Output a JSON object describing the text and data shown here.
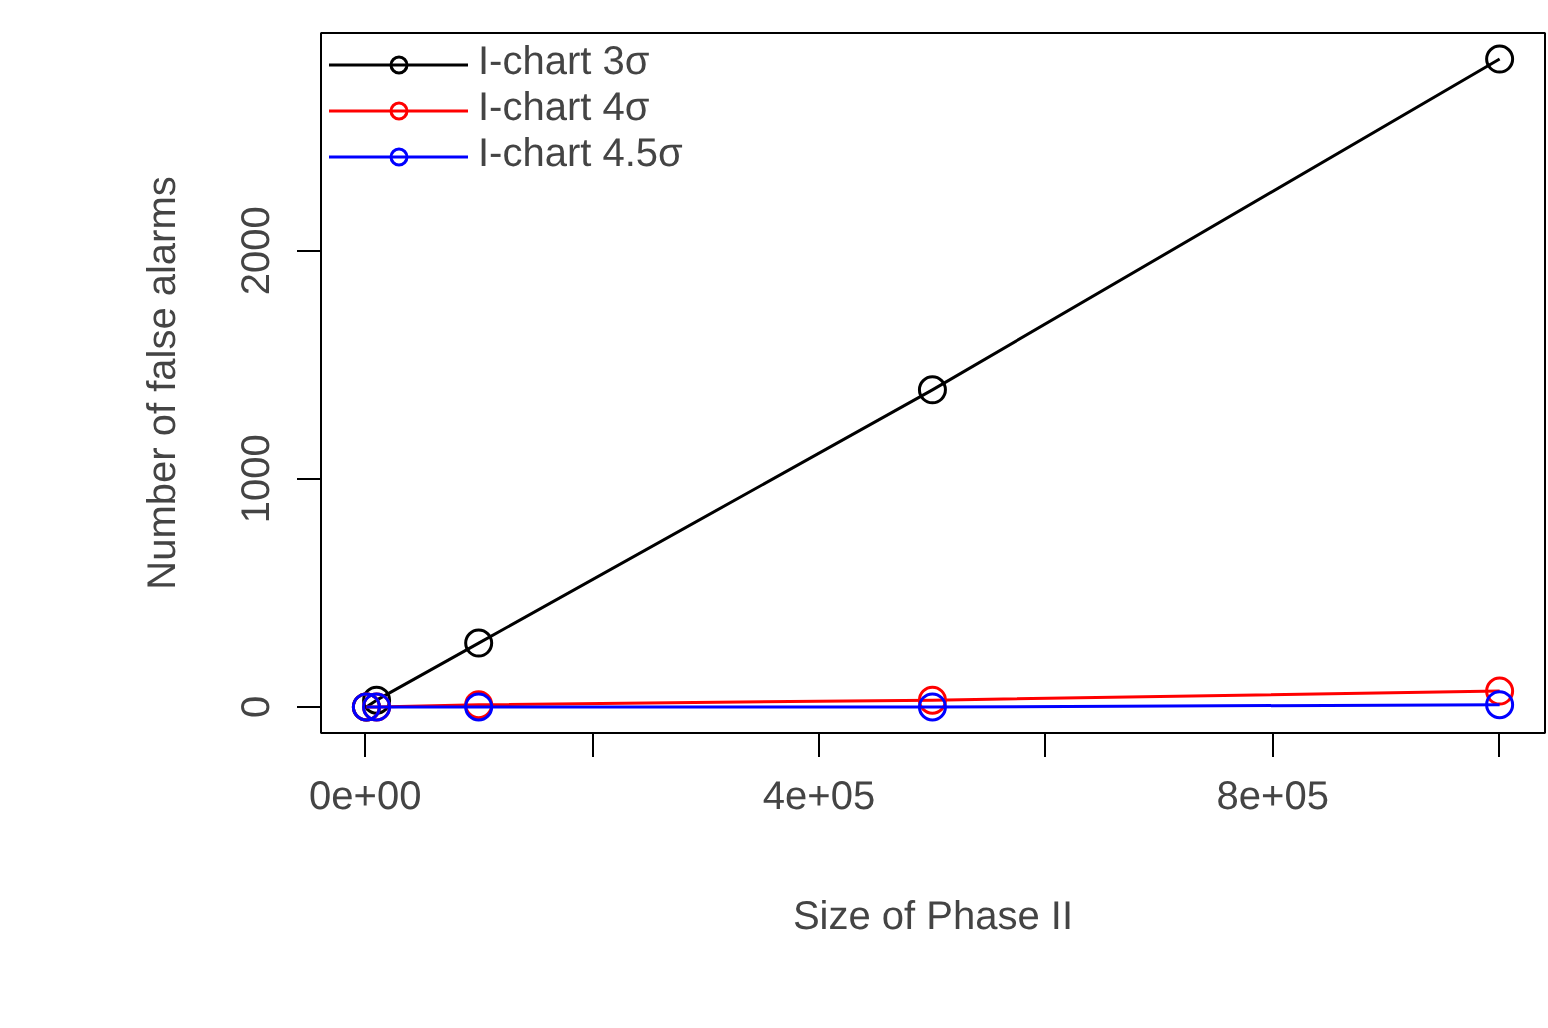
{
  "chart_data": {
    "type": "line",
    "xlabel": "Size of Phase II",
    "ylabel": "Number of false alarms",
    "x": [
      1000,
      10000,
      100000,
      500000,
      1000000
    ],
    "series": [
      {
        "name": "I-chart 3σ",
        "color": "#000000",
        "values": [
          0,
          30,
          280,
          1390,
          2840
        ]
      },
      {
        "name": "I-chart 4σ",
        "color": "#ff0000",
        "values": [
          0,
          0,
          10,
          30,
          70
        ]
      },
      {
        "name": "I-chart 4.5σ",
        "color": "#0000ff",
        "values": [
          0,
          0,
          0,
          0,
          10
        ]
      }
    ],
    "xlim": [
      -39000,
      1040000
    ],
    "ylim": [
      -114,
      2954
    ],
    "xticks": [
      {
        "value": 0,
        "label": "0e+00"
      },
      {
        "value": 200000,
        "label": null
      },
      {
        "value": 400000,
        "label": "4e+05"
      },
      {
        "value": 600000,
        "label": null
      },
      {
        "value": 800000,
        "label": "8e+05"
      },
      {
        "value": 1000000,
        "label": null
      }
    ],
    "yticks": [
      0,
      1000,
      2000
    ],
    "marker": "circle",
    "line_style": "solid",
    "grid": false,
    "legend": "top left"
  }
}
